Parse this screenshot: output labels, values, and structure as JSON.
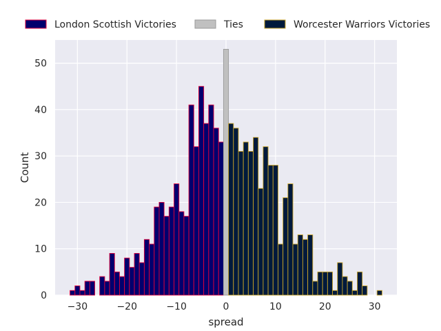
{
  "chart_data": {
    "type": "bar",
    "xlabel": "spread",
    "ylabel": "Count",
    "xlim": [
      -34.5,
      34.5
    ],
    "ylim": [
      0,
      55
    ],
    "xticks": [
      -30,
      -20,
      -10,
      0,
      10,
      20,
      30
    ],
    "yticks": [
      0,
      10,
      20,
      30,
      40,
      50
    ],
    "grid": true,
    "legend_position": "top",
    "colors": {
      "background": "#eaeaf2",
      "grid": "#ffffff",
      "london_fill": "#00006e",
      "london_edge": "#e0003c",
      "ties_fill": "#c0c0c0",
      "ties_edge": "#9a9a9a",
      "worcester_fill": "#001a3c",
      "worcester_edge": "#c9a227"
    },
    "series": [
      {
        "name": "London Scottish Victories",
        "key": "london",
        "x": [
          -31,
          -30,
          -29,
          -28,
          -27,
          -25,
          -24,
          -23,
          -22,
          -21,
          -20,
          -19,
          -18,
          -17,
          -16,
          -15,
          -14,
          -13,
          -12,
          -11,
          -10,
          -9,
          -8,
          -7,
          -6,
          -5,
          -4,
          -3,
          -2,
          -1
        ],
        "values": [
          1,
          2,
          1,
          3,
          3,
          4,
          3,
          9,
          5,
          4,
          8,
          6,
          9,
          7,
          12,
          11,
          19,
          20,
          17,
          19,
          24,
          18,
          17,
          41,
          32,
          45,
          37,
          41,
          36,
          33
        ]
      },
      {
        "name": "Ties",
        "key": "ties",
        "x": [
          0
        ],
        "values": [
          53
        ]
      },
      {
        "name": "Worcester Warriors Victories",
        "key": "worcester",
        "x": [
          1,
          2,
          3,
          4,
          5,
          6,
          7,
          8,
          9,
          10,
          11,
          12,
          13,
          14,
          15,
          16,
          17,
          18,
          19,
          20,
          21,
          22,
          23,
          24,
          25,
          26,
          27,
          28,
          31
        ],
        "values": [
          37,
          36,
          31,
          33,
          31,
          34,
          23,
          32,
          28,
          28,
          11,
          21,
          24,
          11,
          13,
          12,
          13,
          3,
          5,
          5,
          5,
          1,
          7,
          4,
          3,
          1,
          5,
          2,
          1
        ]
      }
    ]
  }
}
